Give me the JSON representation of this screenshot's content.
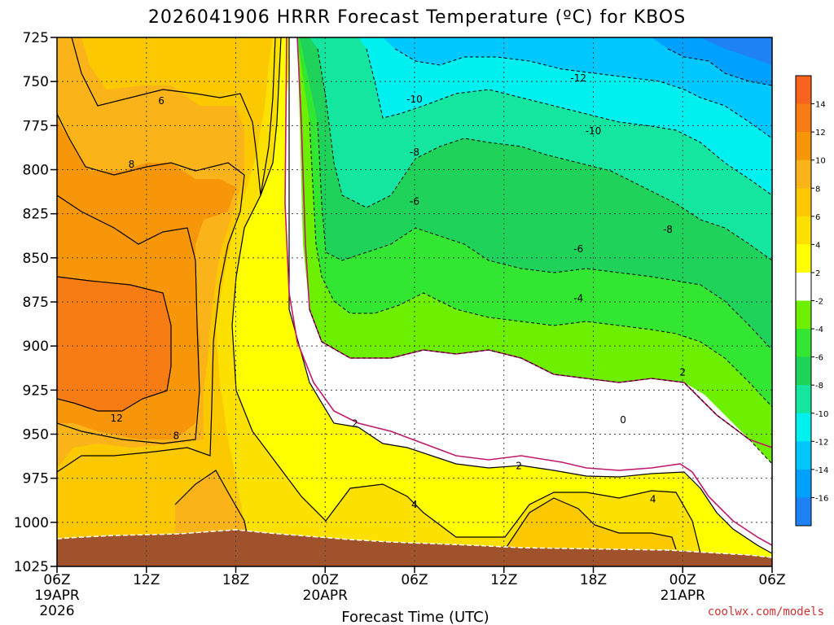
{
  "chart_data": {
    "type": "heatmap",
    "title": "2026041906 HRRR Forecast Temperature (ºC) for KBOS",
    "xlabel": "Forecast Time (UTC)",
    "ylabel": "",
    "credit": "coolwx.com/models",
    "x_range_hours": [
      0,
      48
    ],
    "y_range_hpa": [
      725,
      1025
    ],
    "y_ticks": [
      "725",
      "750",
      "775",
      "800",
      "825",
      "850",
      "875",
      "900",
      "925",
      "950",
      "975",
      "1000",
      "1025"
    ],
    "x_ticks": [
      {
        "hour": 0,
        "label": "06Z",
        "sub1": "19APR",
        "sub2": "2026"
      },
      {
        "hour": 6,
        "label": "12Z",
        "sub1": "",
        "sub2": ""
      },
      {
        "hour": 12,
        "label": "18Z",
        "sub1": "",
        "sub2": ""
      },
      {
        "hour": 18,
        "label": "00Z",
        "sub1": "20APR",
        "sub2": ""
      },
      {
        "hour": 24,
        "label": "06Z",
        "sub1": "",
        "sub2": ""
      },
      {
        "hour": 30,
        "label": "12Z",
        "sub1": "",
        "sub2": ""
      },
      {
        "hour": 36,
        "label": "18Z",
        "sub1": "",
        "sub2": ""
      },
      {
        "hour": 42,
        "label": "00Z",
        "sub1": "21APR",
        "sub2": ""
      },
      {
        "hour": 48,
        "label": "06Z",
        "sub1": "",
        "sub2": ""
      }
    ],
    "colorbar": {
      "levels": [
        "14",
        "12",
        "10",
        "8",
        "6",
        "4",
        "2",
        "-2",
        "-4",
        "-6",
        "-8",
        "-10",
        "-12",
        "-14",
        "-16"
      ],
      "colors": [
        "#f8641e",
        "#f87c14",
        "#f8960a",
        "#fab41a",
        "#fcc800",
        "#fce000",
        "#ffff00",
        "#ffffff",
        "#6cf000",
        "#32e632",
        "#1ed25a",
        "#14e6a0",
        "#00f0f0",
        "#00c8ff",
        "#00a0ff",
        "#1e82f5"
      ]
    },
    "contour_labels": [
      {
        "text": "6",
        "hour": 7,
        "hpa": 761
      },
      {
        "text": "8",
        "hour": 5,
        "hpa": 797
      },
      {
        "text": "12",
        "hour": 4,
        "hpa": 941
      },
      {
        "text": "8",
        "hour": 8,
        "hpa": 951
      },
      {
        "text": "2",
        "hour": 20,
        "hpa": 944
      },
      {
        "text": "4",
        "hour": 24,
        "hpa": 990
      },
      {
        "text": "2",
        "hour": 31,
        "hpa": 968
      },
      {
        "text": "0",
        "hour": 38,
        "hpa": 942
      },
      {
        "text": "4",
        "hour": 40,
        "hpa": 987
      },
      {
        "text": "2",
        "hour": 42,
        "hpa": 915
      },
      {
        "text": "-4",
        "hour": 35,
        "hpa": 873
      },
      {
        "text": "-6",
        "hour": 35,
        "hpa": 845
      },
      {
        "text": "-8",
        "hour": 41,
        "hpa": 834
      },
      {
        "text": "-6",
        "hour": 24,
        "hpa": 818
      },
      {
        "text": "-8",
        "hour": 24,
        "hpa": 790
      },
      {
        "text": "-10",
        "hour": 24,
        "hpa": 760
      },
      {
        "text": "-10",
        "hour": 36,
        "hpa": 778
      },
      {
        "text": "-12",
        "hour": 35,
        "hpa": 748
      }
    ]
  }
}
